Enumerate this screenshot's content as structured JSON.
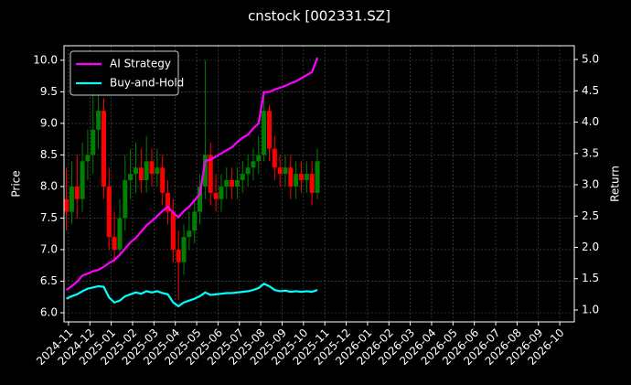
{
  "chart_data": {
    "type": "candlestick",
    "title": "cnstock [002331.SZ]",
    "ylabel": "Price",
    "y2label": "Return",
    "x": [
      -0.1,
      0.15,
      0.4,
      0.65,
      0.9,
      1.15,
      1.4,
      1.65,
      1.9,
      2.15,
      2.4,
      2.65,
      2.9,
      3.15,
      3.4,
      3.65,
      3.9,
      4.15,
      4.4,
      4.65,
      4.9,
      5.15,
      5.4,
      5.65,
      5.9,
      6.15,
      6.4,
      6.65,
      6.9,
      7.15,
      7.4,
      7.65,
      7.9,
      8.15,
      8.4,
      8.65,
      8.9,
      9.15,
      9.4,
      9.65,
      9.9,
      10.15,
      10.4,
      10.65,
      10.9,
      11.15,
      11.4,
      11.65
    ],
    "open": [
      7.8,
      7.6,
      8.0,
      7.8,
      8.4,
      8.5,
      8.9,
      9.2,
      8.0,
      7.2,
      7.0,
      7.5,
      8.1,
      8.2,
      8.3,
      8.1,
      8.4,
      8.2,
      8.3,
      7.9,
      7.6,
      7.0,
      6.8,
      7.2,
      7.3,
      7.6,
      8.0,
      8.5,
      7.9,
      7.8,
      8.0,
      8.1,
      8.0,
      8.1,
      8.2,
      8.3,
      8.4,
      8.5,
      9.2,
      8.6,
      8.3,
      8.2,
      8.3,
      8.0,
      8.2,
      8.1,
      8.2,
      7.9
    ],
    "high": [
      8.3,
      8.4,
      8.5,
      8.7,
      8.9,
      9.6,
      9.5,
      9.4,
      8.3,
      7.6,
      7.8,
      8.5,
      8.6,
      8.7,
      8.6,
      8.8,
      8.6,
      8.6,
      8.5,
      8.1,
      7.8,
      7.3,
      7.4,
      7.6,
      7.8,
      8.2,
      10.0,
      8.7,
      8.2,
      8.2,
      8.3,
      8.3,
      8.3,
      8.4,
      8.5,
      8.6,
      8.8,
      9.5,
      9.3,
      8.8,
      8.5,
      8.5,
      8.5,
      8.4,
      8.4,
      8.4,
      8.4,
      8.6
    ],
    "low": [
      7.3,
      7.4,
      7.5,
      7.6,
      8.1,
      8.2,
      8.6,
      7.8,
      7.0,
      6.8,
      6.9,
      7.3,
      7.8,
      7.9,
      7.9,
      7.9,
      8.0,
      8.0,
      7.7,
      7.4,
      6.8,
      6.2,
      6.6,
      7.0,
      7.1,
      7.4,
      7.8,
      7.7,
      7.6,
      7.6,
      7.8,
      7.8,
      7.8,
      7.9,
      8.0,
      8.1,
      8.2,
      8.4,
      8.4,
      8.1,
      8.0,
      8.0,
      7.8,
      7.8,
      7.9,
      7.9,
      7.7,
      7.8
    ],
    "close": [
      7.6,
      8.0,
      7.8,
      8.4,
      8.5,
      8.9,
      9.2,
      8.0,
      7.2,
      7.0,
      7.5,
      8.1,
      8.2,
      8.3,
      8.1,
      8.4,
      8.2,
      8.3,
      7.9,
      7.6,
      7.0,
      6.8,
      7.2,
      7.3,
      7.6,
      8.0,
      8.5,
      7.9,
      7.8,
      8.0,
      8.1,
      8.0,
      8.1,
      8.2,
      8.3,
      8.4,
      8.5,
      9.2,
      8.6,
      8.3,
      8.2,
      8.3,
      8.0,
      8.2,
      8.1,
      8.2,
      7.9,
      8.4
    ],
    "up_color": "#008000",
    "down_color": "#ff0000",
    "series": [
      {
        "name": "AI Strategy",
        "color": "#ff00ff",
        "axis": "y2",
        "values": [
          1.32,
          1.38,
          1.45,
          1.55,
          1.58,
          1.62,
          1.64,
          1.69,
          1.75,
          1.8,
          1.88,
          1.98,
          2.08,
          2.15,
          2.25,
          2.35,
          2.42,
          2.5,
          2.58,
          2.65,
          2.55,
          2.48,
          2.58,
          2.65,
          2.75,
          2.85,
          3.38,
          3.4,
          3.45,
          3.5,
          3.55,
          3.6,
          3.68,
          3.75,
          3.8,
          3.9,
          3.98,
          4.48,
          4.48,
          4.52,
          4.55,
          4.58,
          4.62,
          4.65,
          4.7,
          4.75,
          4.8,
          5.03
        ]
      },
      {
        "name": "Buy-and-Hold",
        "color": "#00ffff",
        "axis": "y2",
        "values": [
          1.18,
          1.22,
          1.25,
          1.3,
          1.34,
          1.36,
          1.38,
          1.37,
          1.2,
          1.12,
          1.15,
          1.22,
          1.25,
          1.28,
          1.26,
          1.3,
          1.28,
          1.3,
          1.27,
          1.25,
          1.12,
          1.06,
          1.12,
          1.15,
          1.18,
          1.22,
          1.28,
          1.24,
          1.25,
          1.26,
          1.27,
          1.27,
          1.28,
          1.29,
          1.3,
          1.32,
          1.35,
          1.42,
          1.38,
          1.32,
          1.3,
          1.31,
          1.29,
          1.3,
          1.29,
          1.3,
          1.29,
          1.32
        ]
      }
    ],
    "xlim": [
      -0.21,
      23.68
    ],
    "xticks": [
      {
        "value": 0,
        "label": "2024-11"
      },
      {
        "value": 1,
        "label": "2024-12"
      },
      {
        "value": 2,
        "label": "2025-01"
      },
      {
        "value": 3,
        "label": "2025-02"
      },
      {
        "value": 4,
        "label": "2025-03"
      },
      {
        "value": 5,
        "label": "2025-04"
      },
      {
        "value": 6,
        "label": "2025-05"
      },
      {
        "value": 7,
        "label": "2025-06"
      },
      {
        "value": 8,
        "label": "2025-07"
      },
      {
        "value": 9,
        "label": "2025-08"
      },
      {
        "value": 10,
        "label": "2025-09"
      },
      {
        "value": 11,
        "label": "2025-10"
      },
      {
        "value": 12,
        "label": "2025-11"
      },
      {
        "value": 13,
        "label": "2025-12"
      },
      {
        "value": 14,
        "label": "2026-01"
      },
      {
        "value": 15,
        "label": "2026-02"
      },
      {
        "value": 16,
        "label": "2026-03"
      },
      {
        "value": 17,
        "label": "2026-04"
      },
      {
        "value": 18,
        "label": "2026-05"
      },
      {
        "value": 19,
        "label": "2026-06"
      },
      {
        "value": 20,
        "label": "2026-07"
      },
      {
        "value": 21,
        "label": "2026-08"
      },
      {
        "value": 22,
        "label": "2026-09"
      },
      {
        "value": 23,
        "label": "2026-10"
      }
    ],
    "ylim": [
      5.855,
      10.23
    ],
    "yticks": [
      {
        "value": 6,
        "label": "6.0"
      },
      6.5,
      {
        "value": 7,
        "label": "7.0"
      },
      7.5,
      {
        "value": 8,
        "label": "8.0"
      },
      8.5,
      {
        "value": 9,
        "label": "9.0"
      },
      9.5,
      {
        "value": 10,
        "label": "10.0"
      }
    ],
    "y2lim": [
      0.81,
      5.22
    ],
    "y2ticks": [
      {
        "value": 1,
        "label": "1.0"
      },
      1.5,
      {
        "value": 2,
        "label": "2.0"
      },
      2.5,
      {
        "value": 3,
        "label": "3.0"
      },
      3.5,
      {
        "value": 4,
        "label": "4.0"
      },
      4.5,
      {
        "value": 5,
        "label": "5.0"
      }
    ],
    "grid": true,
    "legend": "upper left"
  }
}
